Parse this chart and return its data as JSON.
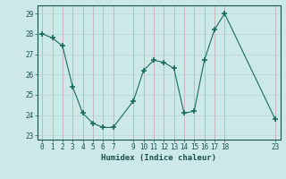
{
  "x": [
    0,
    1,
    2,
    3,
    4,
    5,
    6,
    7,
    9,
    10,
    11,
    12,
    13,
    14,
    15,
    16,
    17,
    18,
    23
  ],
  "y": [
    28.0,
    27.8,
    27.4,
    25.4,
    24.1,
    23.6,
    23.4,
    23.4,
    24.7,
    26.2,
    26.7,
    26.6,
    26.3,
    24.1,
    24.2,
    26.7,
    28.2,
    29.0,
    23.8
  ],
  "line_color": "#1a6b5a",
  "marker_color": "#1a6b5a",
  "bg_color": "#cce8e8",
  "grid_color": "#b8d4d4",
  "axis_color": "#1a5050",
  "xlabel": "Humidex (Indice chaleur)",
  "xlim": [
    -0.5,
    23.5
  ],
  "ylim": [
    22.8,
    29.4
  ],
  "yticks": [
    23,
    24,
    25,
    26,
    27,
    28,
    29
  ],
  "xticks": [
    0,
    1,
    2,
    3,
    4,
    5,
    6,
    7,
    9,
    10,
    11,
    12,
    13,
    14,
    15,
    16,
    17,
    18,
    23
  ],
  "xtick_labels": [
    "0",
    "1",
    "2",
    "3",
    "4",
    "5",
    "6",
    "7",
    "9",
    "10",
    "11",
    "12",
    "13",
    "14",
    "15",
    "16",
    "17",
    "18",
    "23"
  ],
  "label_fontsize": 6.5,
  "tick_fontsize": 5.5
}
